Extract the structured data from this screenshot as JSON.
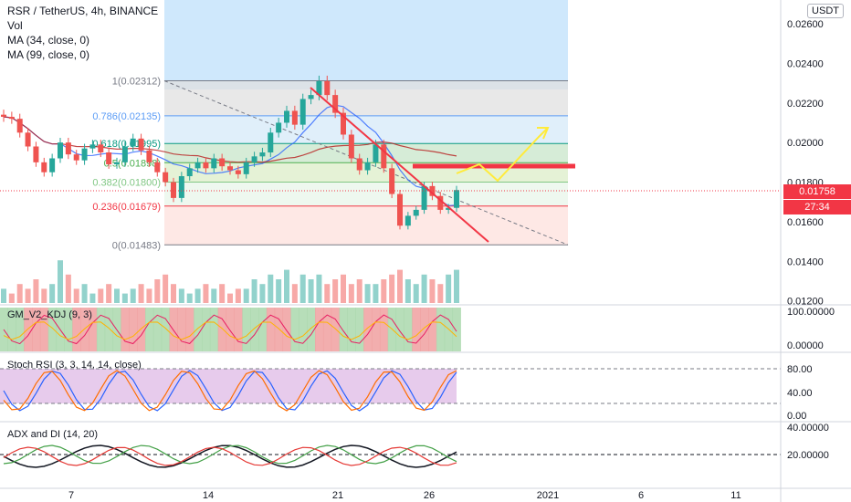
{
  "header": {
    "symbol_line": "RSR / TetherUS, 4h, BINANCE",
    "vol_label": "Vol",
    "ma34_label": "MA (34, close, 0)",
    "ma99_label": "MA (99, close, 0)",
    "currency_badge": "USDT"
  },
  "price_axis": {
    "ticks": [
      "0.02600",
      "0.02400",
      "0.02200",
      "0.02000",
      "0.01800",
      "0.01600",
      "0.01400",
      "0.01200"
    ],
    "last_price": "0.01758",
    "countdown": "27:34"
  },
  "x_axis": {
    "ticks": [
      "7",
      "14",
      "21",
      "26",
      "2021",
      "6",
      "11"
    ]
  },
  "fib_levels": [
    {
      "ratio": "1",
      "price": "0.02312",
      "label": "1(0.02312)",
      "color": "#787b86"
    },
    {
      "ratio": "0.786",
      "price": "0.02135",
      "label": "0.786(0.02135)",
      "color": "#5b9cf6"
    },
    {
      "ratio": "0.618",
      "price": "0.01995",
      "label": "0.618(0.01995)",
      "color": "#089981"
    },
    {
      "ratio": "0.5",
      "price": "0.01898",
      "label": "0.5(0.01898)",
      "color": "#4caf50"
    },
    {
      "ratio": "0.382",
      "price": "0.01800",
      "label": "0.382(0.01800)",
      "color": "#81c784"
    },
    {
      "ratio": "0.236",
      "price": "0.01679",
      "label": "0.236(0.01679)",
      "color": "#f23645"
    },
    {
      "ratio": "0",
      "price": "0.01483",
      "label": "0(0.01483)",
      "color": "#787b86"
    }
  ],
  "indicators": {
    "kdj": {
      "label": "GM_V2_KDJ (9, 3)",
      "ticks": [
        "100.00000",
        "0.00000"
      ]
    },
    "stoch": {
      "label": "Stoch RSI (3, 3, 14, 14, close)",
      "ticks": [
        "80.00",
        "40.00",
        "0.00"
      ]
    },
    "adx": {
      "label": "ADX and DI (14, 20)",
      "ticks": [
        "40.00000",
        "20.00000"
      ]
    }
  },
  "colors": {
    "up": "#26a69a",
    "down": "#ef5350",
    "ma34": "#2962ff",
    "ma99": "#b71c1c",
    "trendline": "#f23645",
    "resistance": "#f23645",
    "projection": "#ffeb3b",
    "price_tag_bg": "#f23645"
  },
  "chart_data": {
    "type": "candlestick",
    "symbol": "RSR / TetherUS",
    "interval": "4h",
    "exchange": "BINANCE",
    "ylim": [
      0.0118,
      0.0272
    ],
    "last_price": 0.01758,
    "x_ticks": [
      "7",
      "14",
      "21",
      "26",
      "2021",
      "6",
      "11"
    ],
    "close_series": [
      0.0213,
      0.0212,
      0.0205,
      0.0198,
      0.019,
      0.0185,
      0.0192,
      0.02,
      0.0194,
      0.0191,
      0.0197,
      0.0199,
      0.0195,
      0.0189,
      0.019,
      0.0198,
      0.0202,
      0.0196,
      0.019,
      0.0185,
      0.018,
      0.0172,
      0.0183,
      0.0187,
      0.019,
      0.0187,
      0.0192,
      0.0188,
      0.0186,
      0.0184,
      0.019,
      0.0193,
      0.0195,
      0.0205,
      0.021,
      0.0216,
      0.0209,
      0.0222,
      0.0224,
      0.0231,
      0.0224,
      0.0215,
      0.0204,
      0.0192,
      0.0186,
      0.019,
      0.0199,
      0.0187,
      0.0174,
      0.0158,
      0.0163,
      0.0166,
      0.0178,
      0.0173,
      0.0166,
      0.0167,
      0.0176
    ],
    "volume_series": [
      3,
      2,
      4,
      3,
      5,
      3,
      4,
      9,
      6,
      3,
      4,
      2,
      3,
      4,
      3,
      2,
      3,
      4,
      3,
      5,
      6,
      4,
      3,
      2,
      3,
      4,
      3,
      4,
      2,
      3,
      3,
      5,
      4,
      6,
      5,
      7,
      4,
      6,
      5,
      6,
      4,
      5,
      6,
      4,
      5,
      4,
      4,
      5,
      6,
      7,
      5,
      4,
      6,
      5,
      4,
      6,
      7
    ]
  }
}
